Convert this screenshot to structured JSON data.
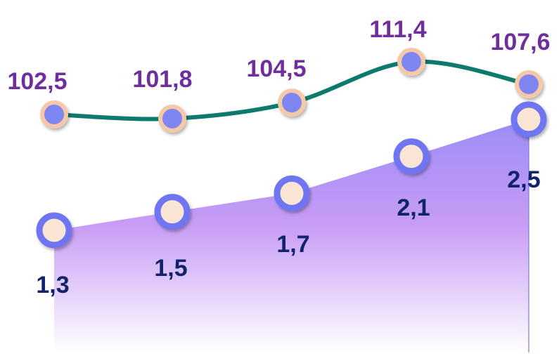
{
  "chart_data": {
    "type": "line",
    "title": "",
    "xlabel": "",
    "ylabel": "",
    "grid": false,
    "legend": "none",
    "categories": [
      "",
      "",
      "",
      "",
      ""
    ],
    "series": [
      {
        "type": "line",
        "values": [
          102.5,
          101.8,
          104.5,
          111.4,
          107.6
        ],
        "labels": [
          "102,5",
          "101,8",
          "104,5",
          "111,4",
          "107,6"
        ],
        "line_color": "#0e7a6e",
        "marker_fill": "#7f86f2",
        "marker_ring": "#f6c9a6",
        "label_color": "#6f2e9e"
      },
      {
        "type": "area",
        "values": [
          1.3,
          1.5,
          1.7,
          2.1,
          2.5
        ],
        "labels": [
          "1,3",
          "1,5",
          "1,7",
          "2,1",
          "2,5"
        ],
        "fill_top": "#9b8cf6",
        "fill_mid": "#c79cf5",
        "fill_bottom": "#ffffff",
        "marker_fill": "#fbe6d6",
        "marker_ring": "#6f74f1",
        "label_color": "#10236b"
      }
    ]
  }
}
